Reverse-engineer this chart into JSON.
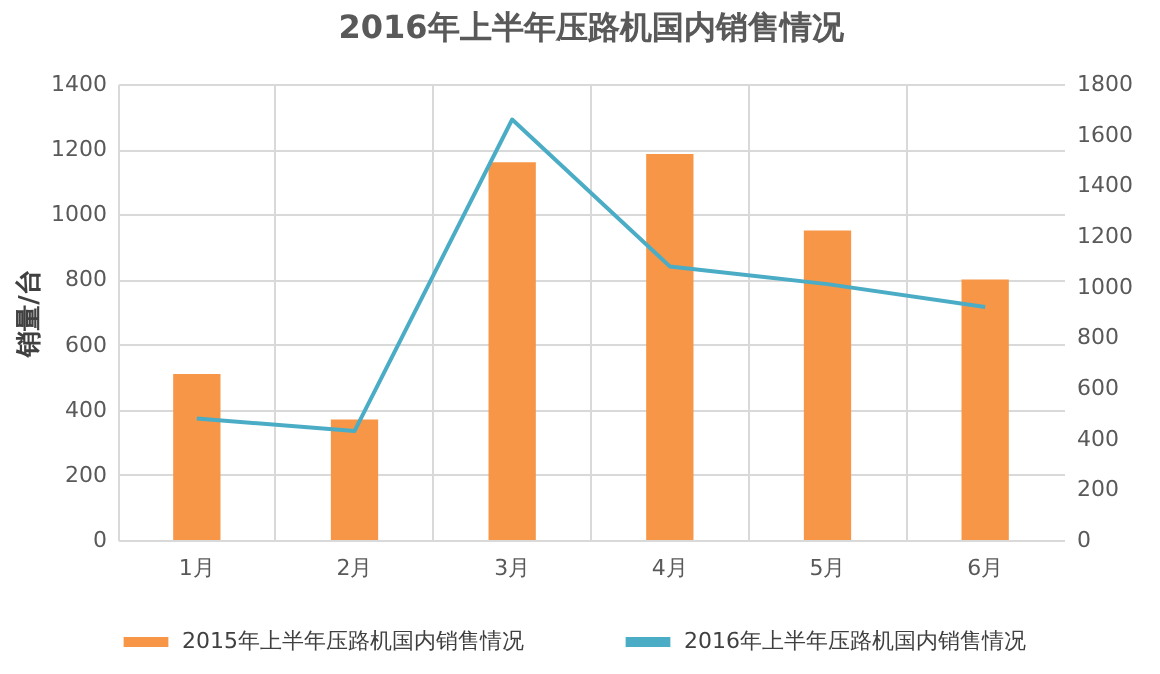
{
  "chart_data": {
    "type": "bar",
    "title": "2016年上半年压路机国内销售情况",
    "ylabel": "销量/台",
    "categories": [
      "1月",
      "2月",
      "3月",
      "4月",
      "5月",
      "6月"
    ],
    "series": [
      {
        "name": "2015年上半年压路机国内销售情况",
        "color": "#f79646",
        "values": [
          510,
          370,
          1160,
          1185,
          950,
          800
        ]
      },
      {
        "name": "2016年上半年压路机国内销售情况",
        "type": "line",
        "axis": "y2",
        "color": "#4bacc6",
        "values": [
          480,
          430,
          1660,
          1080,
          1010,
          920
        ]
      }
    ],
    "ylim": [
      0,
      1400
    ],
    "yticks": [
      0,
      200,
      400,
      600,
      800,
      1000,
      1200,
      1400
    ],
    "y2lim": [
      0,
      1800
    ],
    "y2ticks": [
      0,
      200,
      400,
      600,
      800,
      1000,
      1200,
      1400,
      1600,
      1800
    ],
    "grid": true,
    "legend": "bottom"
  }
}
